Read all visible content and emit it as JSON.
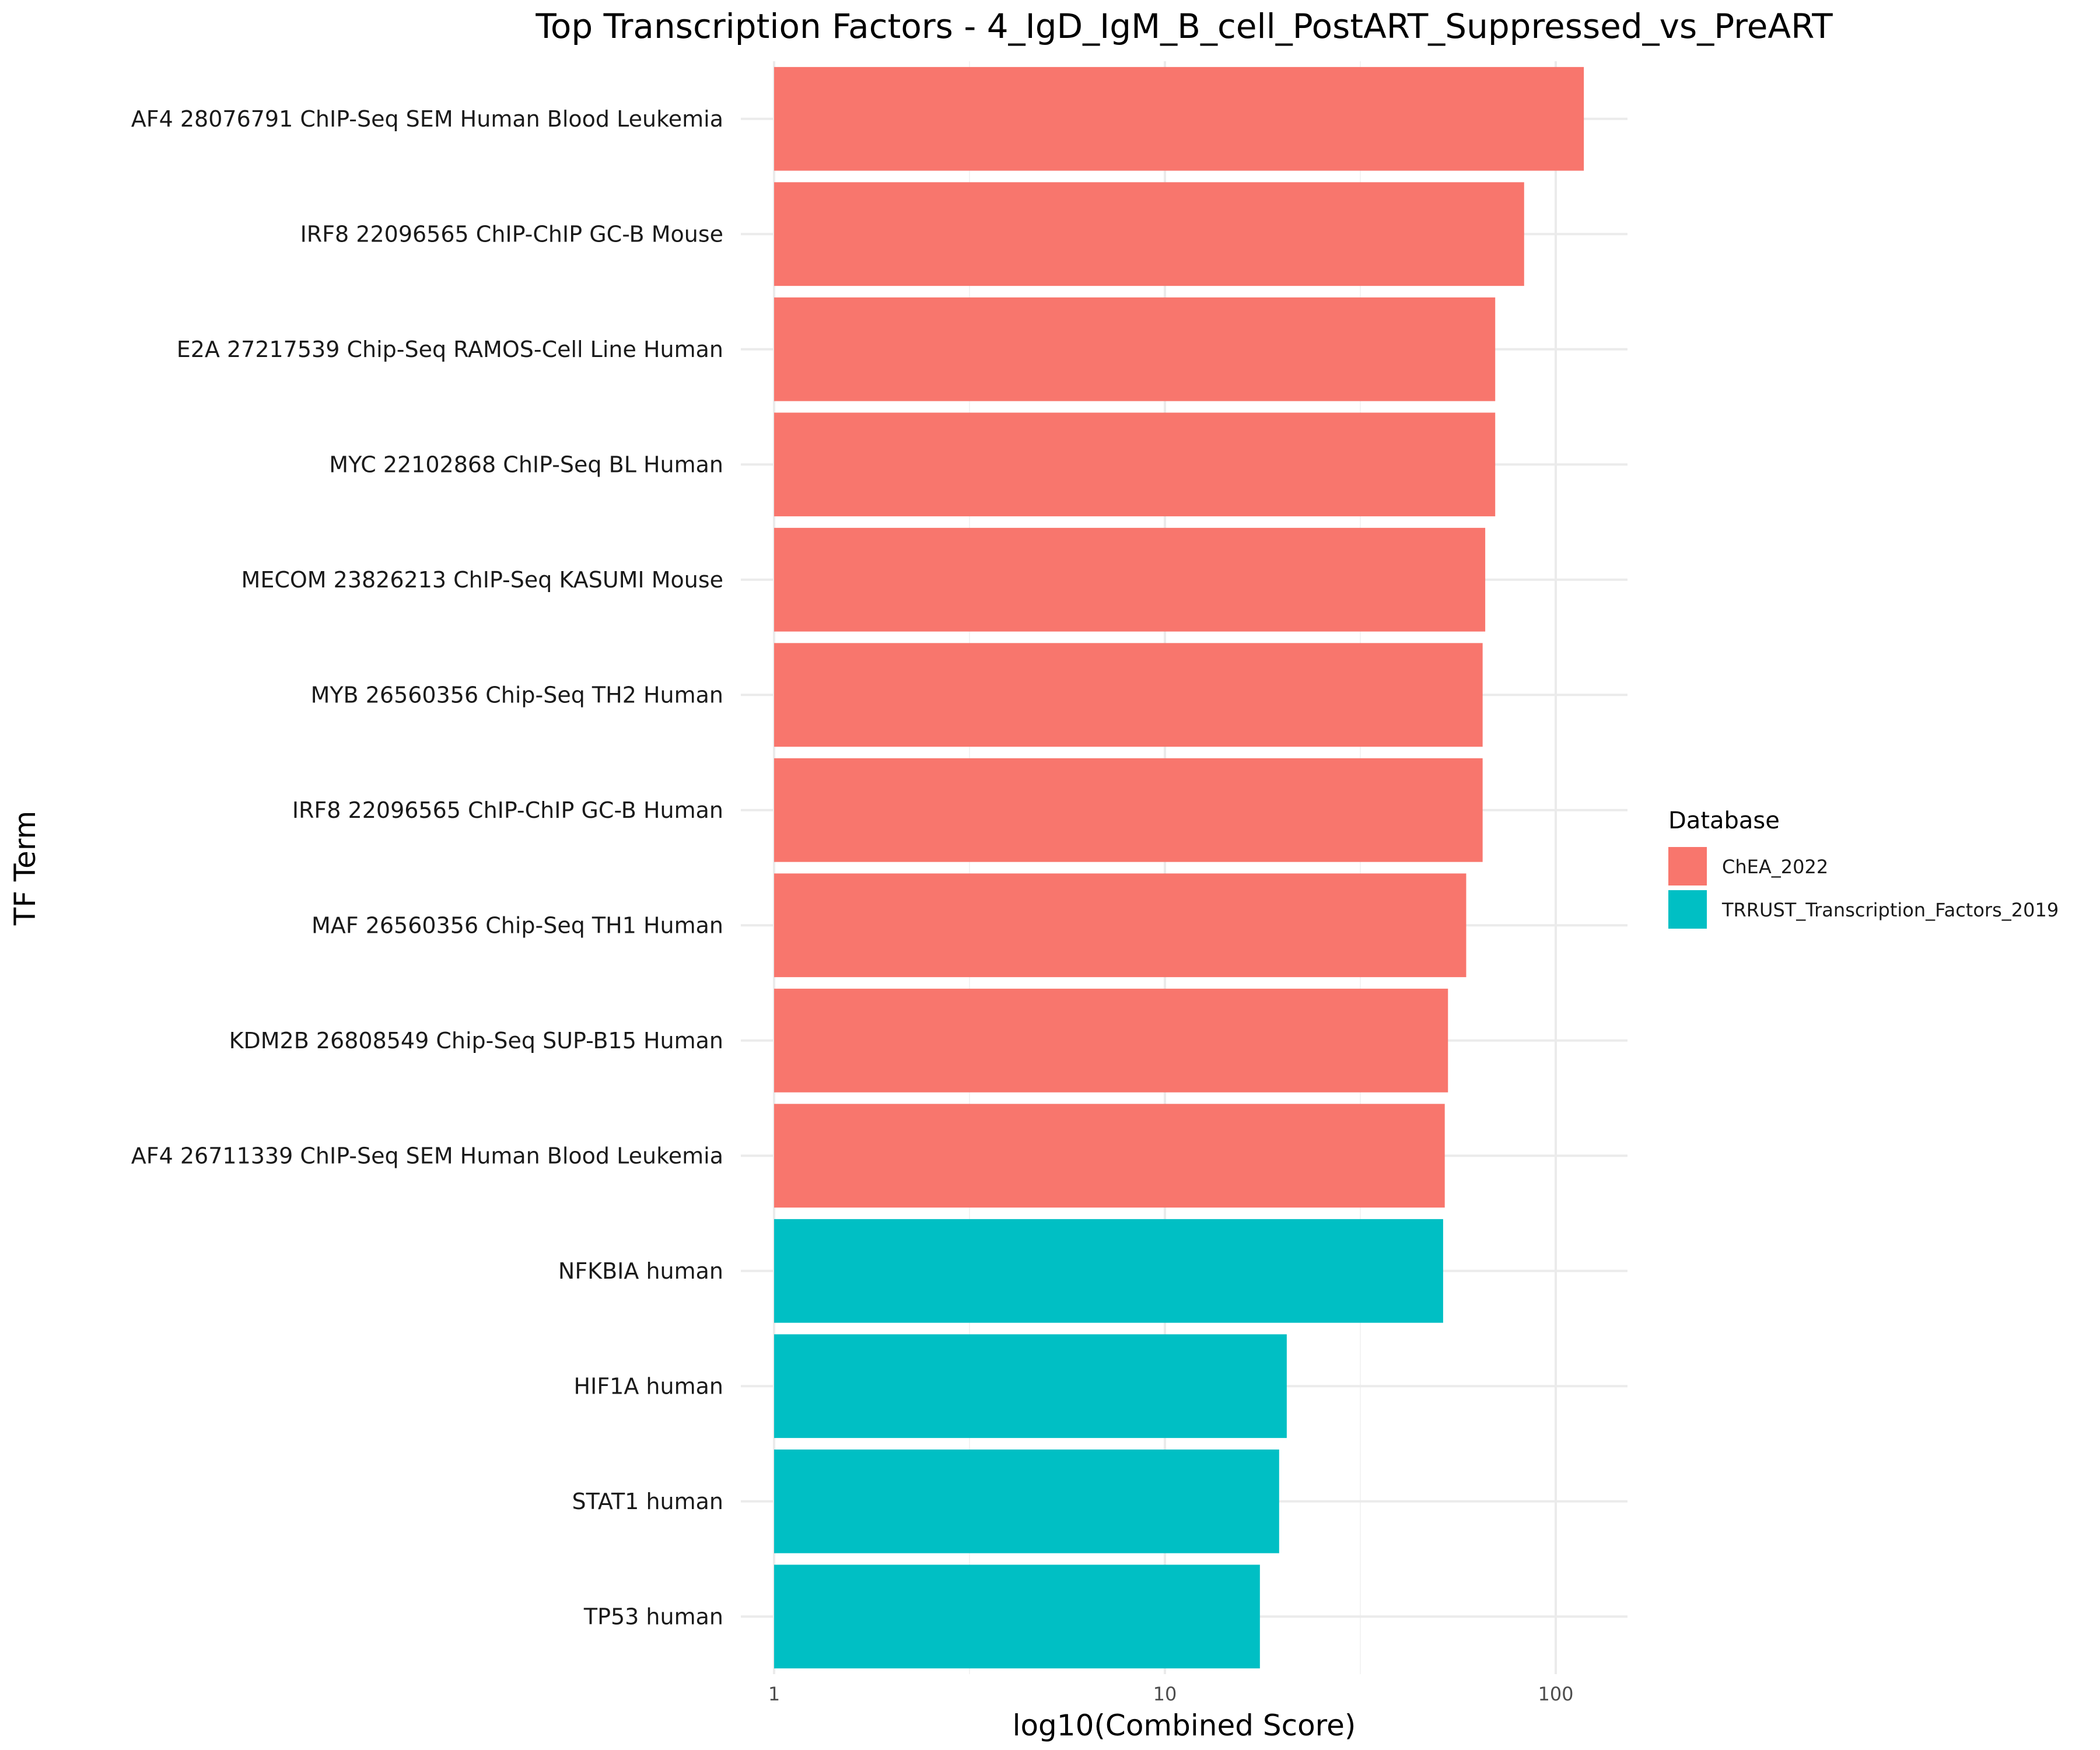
{
  "chart_data": {
    "type": "bar",
    "orientation": "horizontal",
    "title": "Top Transcription Factors - 4_IgD_IgM_B_cell_PostART_Suppressed_vs_PreART",
    "xlabel": "log10(Combined Score)",
    "ylabel": "TF Term",
    "x_scale": "log10",
    "xlim": [
      1,
      150
    ],
    "x_ticks": [
      "1",
      "10",
      "100"
    ],
    "grid": true,
    "legend": {
      "title": "Database",
      "position": "right",
      "entries": [
        {
          "label": "ChEA_2022",
          "color": "#F8766D"
        },
        {
          "label": "TRRUST_Transcription_Factors_2019",
          "color": "#00BFC4"
        }
      ]
    },
    "categories": [
      "AF4 28076791 ChIP-Seq SEM Human Blood Leukemia",
      "IRF8 22096565 ChIP-ChIP GC-B Mouse",
      "E2A 27217539 Chip-Seq RAMOS-Cell Line Human",
      "MYC 22102868 ChIP-Seq BL Human",
      "MECOM 23826213 ChIP-Seq KASUMI Mouse",
      "MYB 26560356 Chip-Seq TH2 Human",
      "IRF8 22096565 ChIP-ChIP GC-B Human",
      "MAF 26560356 Chip-Seq TH1 Human",
      "KDM2B 26808549 Chip-Seq SUP-B15 Human",
      "AF4 26711339 ChIP-Seq SEM Human Blood Leukemia",
      "NFKBIA human",
      "HIF1A human",
      "STAT1 human",
      "TP53 human"
    ],
    "values": [
      118,
      83,
      70,
      70,
      66,
      65,
      65,
      59,
      53,
      52,
      51.5,
      20.5,
      19.6,
      17.5
    ],
    "database": [
      "ChEA_2022",
      "ChEA_2022",
      "ChEA_2022",
      "ChEA_2022",
      "ChEA_2022",
      "ChEA_2022",
      "ChEA_2022",
      "ChEA_2022",
      "ChEA_2022",
      "ChEA_2022",
      "TRRUST_Transcription_Factors_2019",
      "TRRUST_Transcription_Factors_2019",
      "TRRUST_Transcription_Factors_2019",
      "TRRUST_Transcription_Factors_2019"
    ]
  }
}
